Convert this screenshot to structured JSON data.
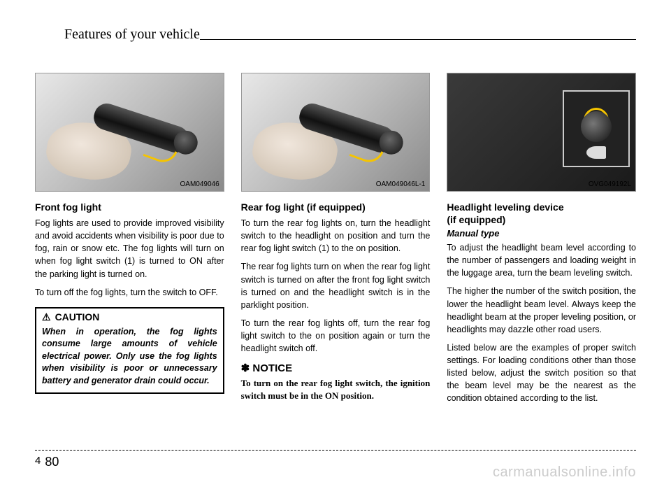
{
  "header": "Features of your vehicle",
  "col1": {
    "figcap": "OAM049046",
    "title": "Front fog light",
    "p1": "Fog lights are used to provide improved visibility and avoid accidents when visibility is poor due to fog, rain or snow etc. The fog lights will turn on when fog light switch (1) is turned to ON after the parking light is turned on.",
    "p2": "To turn off the fog lights, turn the switch to OFF.",
    "caution_title": "CAUTION",
    "caution_body": "When in operation, the fog lights consume large amounts of vehicle electrical power. Only use the fog lights when visibility is poor or unnecessary battery and generator drain could occur."
  },
  "col2": {
    "figcap": "OAM049046L-1",
    "title": "Rear fog light (if equipped)",
    "p1": "To turn the rear fog lights on, turn the headlight switch to the headlight on position and turn the rear fog light switch (1) to the on position.",
    "p2": "The rear fog lights turn on when the rear fog light switch is turned on after the front fog light switch is turned on and the headlight switch is in the parklight position.",
    "p3": "To turn the rear fog lights off, turn the rear fog light switch to the on position again or turn the headlight switch off.",
    "notice_title": "NOTICE",
    "notice_body": "To turn on the rear fog light switch, the ignition switch must be in the ON position."
  },
  "col3": {
    "figcap": "OVG049192L",
    "title1": "Headlight leveling device",
    "title2": "(if equipped)",
    "subtype": "Manual type",
    "p1": "To adjust the headlight beam level according to the number of passengers and loading weight in the luggage area, turn the beam leveling switch.",
    "p2": "The higher the number of the switch position, the lower the headlight beam level. Always keep the headlight beam at the proper leveling position, or headlights may dazzle other road users.",
    "p3": "Listed below are the examples of proper switch settings. For loading conditions other than those listed below, adjust the switch position so that the beam level may be the nearest as the condition obtained according to the list."
  },
  "footer": {
    "section": "4",
    "page": "80"
  },
  "watermark": "carmanualsonline.info"
}
